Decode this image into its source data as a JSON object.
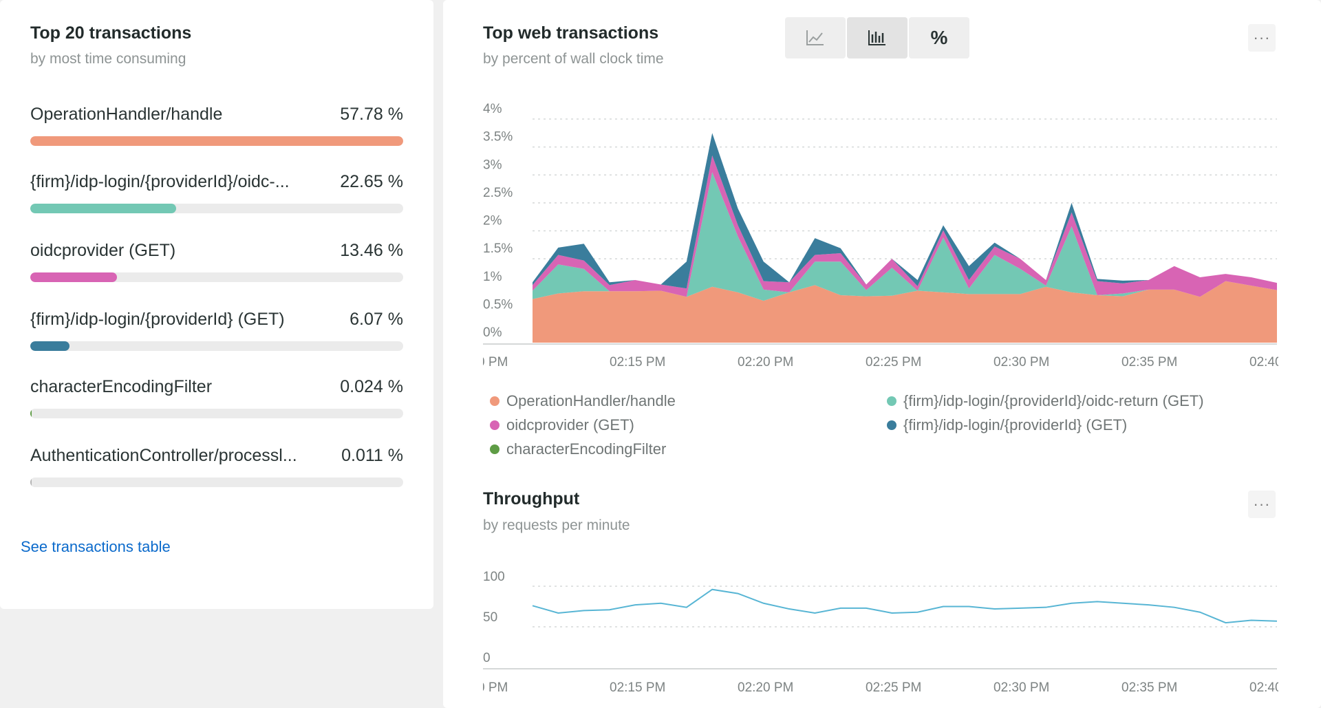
{
  "left": {
    "title": "Top 20 transactions",
    "subtitle": "by most time consuming",
    "link": "See transactions table",
    "transactions": [
      {
        "name": "OperationHandler/handle",
        "pct": "57.78 %",
        "value": 57.78,
        "color": "#f0997b"
      },
      {
        "name": "{firm}/idp-login/{providerId}/oidc-...",
        "pct": "22.65 %",
        "value": 22.65,
        "color": "#73c8b4"
      },
      {
        "name": "oidcprovider (GET)",
        "pct": "13.46 %",
        "value": 13.46,
        "color": "#d864b4"
      },
      {
        "name": "{firm}/idp-login/{providerId} (GET)",
        "pct": "6.07 %",
        "value": 6.07,
        "color": "#3a7d9c"
      },
      {
        "name": "characterEncodingFilter",
        "pct": "0.024 %",
        "value": 0.024,
        "color": "#5e9c45"
      },
      {
        "name": "AuthenticationController/processl...",
        "pct": "0.011 %",
        "value": 0.011,
        "color": "#b3b3b3"
      }
    ]
  },
  "web": {
    "title": "Top web transactions",
    "subtitle": "by percent of wall clock time",
    "toggles": [
      {
        "icon": "line-chart-icon",
        "active": false
      },
      {
        "icon": "bar-chart-icon",
        "active": true
      },
      {
        "icon": "percent-icon",
        "label": "%",
        "active": false
      }
    ],
    "more": "···",
    "legend": [
      {
        "name": "OperationHandler/handle",
        "color": "#f0997b"
      },
      {
        "name": "{firm}/idp-login/{providerId}/oidc-return (GET)",
        "color": "#73c8b4"
      },
      {
        "name": "oidcprovider (GET)",
        "color": "#d864b4"
      },
      {
        "name": "{firm}/idp-login/{providerId} (GET)",
        "color": "#3a7d9c"
      },
      {
        "name": "characterEncodingFilter",
        "color": "#5e9c45"
      }
    ]
  },
  "throughput": {
    "title": "Throughput",
    "subtitle": "by requests per minute",
    "more": "···"
  },
  "chart_data": [
    {
      "type": "area",
      "stacked": true,
      "title": "Top web transactions",
      "subtitle": "by percent of wall clock time",
      "x": [
        0,
        1,
        2,
        3,
        4,
        5,
        6,
        7,
        8,
        9,
        10,
        11,
        12,
        13,
        14,
        15,
        16,
        17,
        18,
        19,
        20,
        21,
        22,
        23,
        24,
        25,
        26,
        27,
        28,
        29
      ],
      "x_ticks": [
        "0 PM",
        "02:15 PM",
        "02:20 PM",
        "02:25 PM",
        "02:30 PM",
        "02:35 PM",
        "02:40 PM"
      ],
      "y_ticks": [
        "0%",
        "0.5%",
        "1%",
        "1.5%",
        "2%",
        "2.5%",
        "3%",
        "3.5%",
        "4%"
      ],
      "ylim": [
        0,
        4
      ],
      "grid": true,
      "legend_position": "bottom",
      "series": [
        {
          "name": "OperationHandler/handle",
          "color": "#f0997b",
          "values": [
            0.78,
            0.88,
            0.92,
            0.92,
            0.92,
            0.93,
            0.82,
            1.0,
            0.9,
            0.75,
            0.9,
            1.03,
            0.85,
            0.83,
            0.84,
            0.93,
            0.9,
            0.87,
            0.87,
            0.87,
            1.0,
            0.9,
            0.85,
            0.83,
            0.95,
            0.95,
            0.82,
            1.1,
            1.02,
            0.94
          ]
        },
        {
          "name": "{firm}/idp-login/{providerId}/oidc-return (GET)",
          "color": "#73c8b4",
          "values": [
            0.15,
            0.52,
            0.4,
            0.0,
            0.0,
            0.0,
            0.0,
            2.05,
            1.0,
            0.2,
            0.0,
            0.42,
            0.6,
            0.11,
            0.5,
            0.0,
            0.98,
            0.1,
            0.7,
            0.45,
            0.02,
            1.18,
            0.0,
            0.05,
            0.0,
            0.0,
            0.0,
            0.0,
            0.0,
            0.0
          ]
        },
        {
          "name": "oidcprovider (GET)",
          "color": "#d864b4",
          "values": [
            0.1,
            0.17,
            0.15,
            0.11,
            0.2,
            0.11,
            0.15,
            0.3,
            0.2,
            0.15,
            0.18,
            0.12,
            0.15,
            0.1,
            0.16,
            0.08,
            0.13,
            0.15,
            0.15,
            0.18,
            0.1,
            0.25,
            0.25,
            0.18,
            0.17,
            0.42,
            0.35,
            0.13,
            0.15,
            0.13
          ]
        },
        {
          "name": "{firm}/idp-login/{providerId} (GET)",
          "color": "#3a7d9c",
          "values": [
            0.05,
            0.13,
            0.3,
            0.05,
            0.0,
            0.0,
            0.48,
            0.4,
            0.3,
            0.35,
            0.0,
            0.3,
            0.09,
            0.0,
            0.0,
            0.11,
            0.09,
            0.25,
            0.07,
            0.0,
            0.0,
            0.17,
            0.04,
            0.05,
            0.0,
            0.0,
            0.0,
            0.0,
            0.0,
            0.0
          ]
        },
        {
          "name": "characterEncodingFilter",
          "color": "#5e9c45",
          "values": [
            0,
            0,
            0,
            0,
            0,
            0,
            0,
            0,
            0,
            0,
            0,
            0,
            0,
            0,
            0,
            0,
            0,
            0,
            0,
            0,
            0,
            0,
            0,
            0,
            0,
            0,
            0,
            0,
            0,
            0
          ]
        }
      ]
    },
    {
      "type": "line",
      "title": "Throughput",
      "subtitle": "by requests per minute",
      "x": [
        0,
        1,
        2,
        3,
        4,
        5,
        6,
        7,
        8,
        9,
        10,
        11,
        12,
        13,
        14,
        15,
        16,
        17,
        18,
        19,
        20,
        21,
        22,
        23,
        24,
        25,
        26,
        27,
        28,
        29
      ],
      "x_ticks": [
        "0 PM",
        "02:15 PM",
        "02:20 PM",
        "02:25 PM",
        "02:30 PM",
        "02:35 PM",
        "02:40 PM"
      ],
      "y_ticks": [
        "0",
        "50",
        "100"
      ],
      "ylim": [
        0,
        100
      ],
      "grid": true,
      "series": [
        {
          "name": "",
          "color": "#57b5d4",
          "values": [
            76,
            67,
            70,
            71,
            77,
            79,
            74,
            96,
            91,
            79,
            72,
            67,
            73,
            73,
            67,
            68,
            75,
            75,
            72,
            73,
            74,
            79,
            81,
            79,
            77,
            74,
            68,
            55,
            58,
            57
          ]
        }
      ]
    }
  ]
}
